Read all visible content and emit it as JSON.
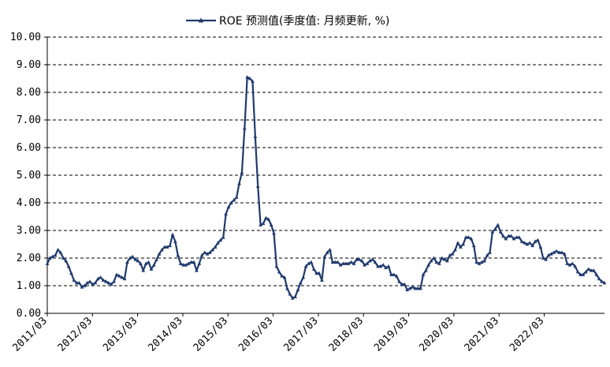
{
  "chart_data": {
    "type": "line",
    "title": "",
    "xlabel": "",
    "ylabel": "",
    "ylim": [
      0,
      10
    ],
    "ytick_labels": [
      "0.00",
      "1.00",
      "2.00",
      "3.00",
      "4.00",
      "5.00",
      "6.00",
      "7.00",
      "8.00",
      "9.00",
      "10.00"
    ],
    "x_start": "2011/03",
    "x_end": "2023/07",
    "xtick_labels": [
      "2011/03",
      "2012/03",
      "2013/03",
      "2014/03",
      "2015/03",
      "2016/03",
      "2017/03",
      "2018/03",
      "2019/03",
      "2020/03",
      "2021/03",
      "2022/03"
    ],
    "grid": "horizontal dashed",
    "legend_position": "top-center",
    "series": [
      {
        "name": "ROE 预测值(季度值: 月频更新, %)",
        "color": "#1f3a6e",
        "marker": "triangle",
        "values": [
          1.8,
          2.0,
          2.05,
          2.1,
          2.3,
          2.2,
          2.0,
          1.9,
          1.7,
          1.45,
          1.2,
          1.1,
          1.1,
          0.95,
          1.0,
          1.1,
          1.15,
          1.05,
          1.1,
          1.25,
          1.3,
          1.2,
          1.15,
          1.1,
          1.05,
          1.15,
          1.4,
          1.35,
          1.3,
          1.25,
          1.85,
          2.0,
          2.05,
          1.95,
          1.9,
          1.8,
          1.55,
          1.8,
          1.85,
          1.6,
          1.75,
          1.95,
          2.15,
          2.3,
          2.4,
          2.4,
          2.45,
          2.85,
          2.6,
          2.1,
          1.8,
          1.75,
          1.75,
          1.8,
          1.85,
          1.85,
          1.55,
          1.8,
          2.1,
          2.2,
          2.15,
          2.2,
          2.3,
          2.4,
          2.55,
          2.65,
          2.75,
          3.6,
          3.85,
          4.0,
          4.1,
          4.2,
          4.7,
          5.1,
          6.7,
          8.55,
          8.5,
          8.4,
          6.4,
          4.6,
          3.2,
          3.25,
          3.45,
          3.4,
          3.2,
          2.9,
          1.7,
          1.5,
          1.35,
          1.3,
          0.9,
          0.7,
          0.55,
          0.6,
          0.85,
          1.1,
          1.3,
          1.7,
          1.8,
          1.85,
          1.6,
          1.45,
          1.45,
          1.2,
          2.05,
          2.2,
          2.3,
          1.85,
          1.85,
          1.85,
          1.75,
          1.8,
          1.8,
          1.8,
          1.85,
          1.8,
          1.95,
          1.95,
          1.9,
          1.75,
          1.8,
          1.9,
          1.95,
          1.85,
          1.7,
          1.7,
          1.75,
          1.65,
          1.7,
          1.4,
          1.4,
          1.35,
          1.15,
          1.05,
          1.05,
          0.85,
          0.9,
          0.95,
          0.9,
          0.9,
          0.9,
          1.4,
          1.55,
          1.75,
          1.9,
          2.0,
          1.85,
          1.8,
          2.0,
          1.95,
          1.9,
          2.1,
          2.15,
          2.3,
          2.55,
          2.4,
          2.5,
          2.75,
          2.75,
          2.7,
          2.45,
          1.85,
          1.8,
          1.85,
          1.9,
          2.1,
          2.2,
          2.95,
          3.05,
          3.2,
          2.95,
          2.8,
          2.7,
          2.8,
          2.8,
          2.7,
          2.75,
          2.75,
          2.6,
          2.55,
          2.5,
          2.55,
          2.45,
          2.6,
          2.65,
          2.4,
          2.0,
          1.95,
          2.1,
          2.15,
          2.2,
          2.25,
          2.2,
          2.2,
          2.15,
          1.8,
          1.75,
          1.8,
          1.7,
          1.5,
          1.4,
          1.4,
          1.5,
          1.6,
          1.55,
          1.55,
          1.4,
          1.25,
          1.15,
          1.1
        ]
      }
    ]
  }
}
